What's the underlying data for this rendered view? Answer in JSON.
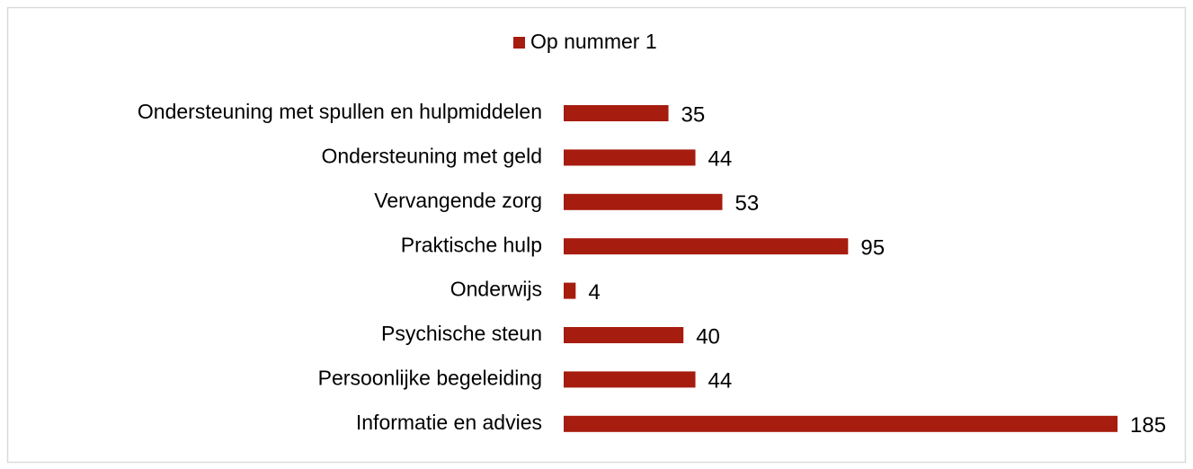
{
  "chart_data": {
    "type": "bar",
    "orientation": "horizontal",
    "categories": [
      "Ondersteuning met spullen en hulpmiddelen",
      "Ondersteuning met geld",
      "Vervangende zorg",
      "Praktische hulp",
      "Onderwijs",
      "Psychische steun",
      "Persoonlijke begeleiding",
      "Informatie en advies"
    ],
    "series": [
      {
        "name": "Op nummer 1",
        "color": "#a61c0f",
        "values": [
          35,
          44,
          53,
          95,
          4,
          40,
          44,
          185
        ]
      }
    ],
    "legend": "top"
  }
}
